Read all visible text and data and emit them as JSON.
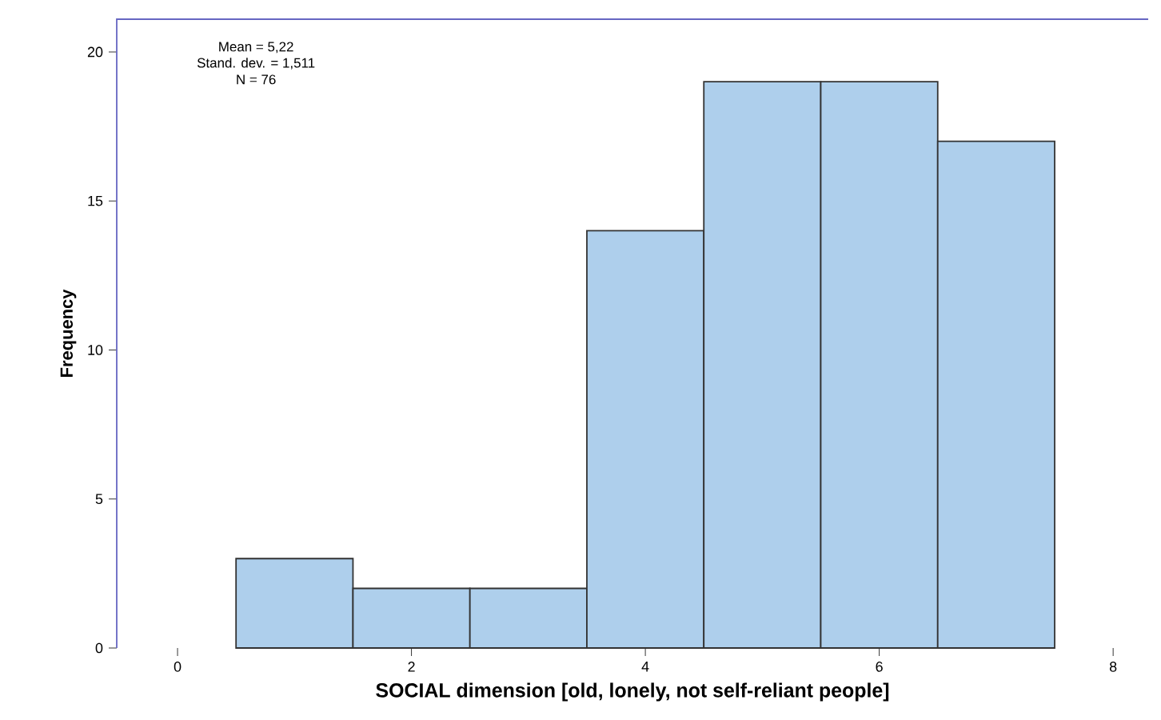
{
  "chart_data": {
    "type": "histogram",
    "xlabel": "SOCIAL dimension [old, lonely, not self-reliant people]",
    "ylabel": "Frequency",
    "bins": [
      0.5,
      1.5,
      2.5,
      3.5,
      4.5,
      5.5,
      6.5,
      7.5
    ],
    "values": [
      3,
      2,
      2,
      14,
      19,
      19,
      17
    ],
    "color": "#aecfec",
    "xlim": [
      -0.52,
      8.3
    ],
    "ylim": [
      0,
      21.1
    ],
    "xticks": [
      0,
      2,
      4,
      6,
      8
    ],
    "yticks": [
      0,
      5,
      10,
      15,
      20
    ],
    "grid": false,
    "annotations": [
      "Mean = 5,22",
      "Stand. dev. = 1,511",
      "N = 76"
    ]
  }
}
